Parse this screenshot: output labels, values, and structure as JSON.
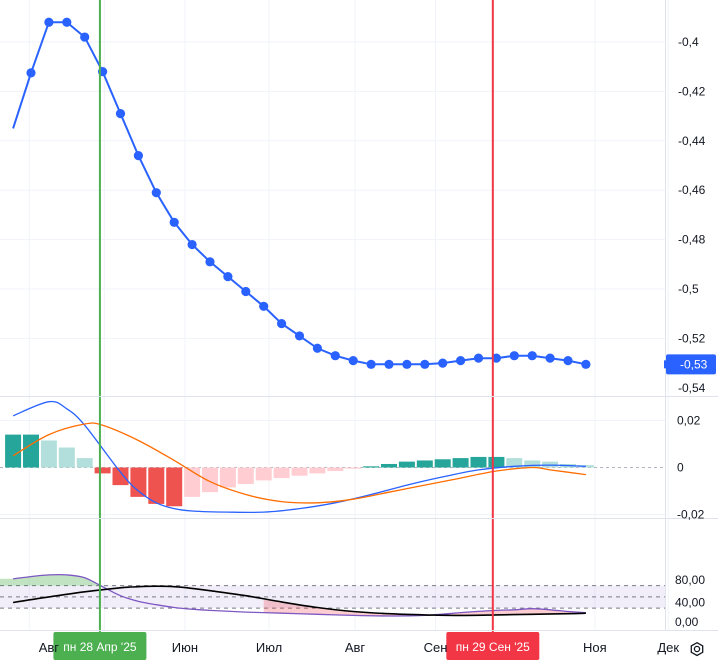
{
  "chart_data": [
    {
      "type": "line",
      "pane": "main",
      "y_ticks": [
        "-0,4",
        "-0,42",
        "-0,44",
        "-0,46",
        "-0,48",
        "-0,5",
        "-0,52",
        "-0,54"
      ],
      "ylim": [
        -0.542,
        -0.385
      ],
      "series": [
        {
          "color": "#2962ff",
          "x": [
            -1,
            0,
            1,
            2,
            3,
            4,
            5,
            6,
            7,
            8,
            9,
            10,
            11,
            12,
            13,
            14,
            15,
            16,
            17,
            18,
            19,
            20,
            21,
            22,
            23,
            24,
            25,
            26,
            27,
            28,
            29,
            30,
            31
          ],
          "values": [
            -0.435,
            -0.4125,
            -0.392,
            -0.392,
            -0.398,
            -0.412,
            -0.429,
            -0.446,
            -0.461,
            -0.473,
            -0.482,
            -0.489,
            -0.495,
            -0.501,
            -0.507,
            -0.514,
            -0.519,
            -0.524,
            -0.527,
            -0.529,
            -0.5305,
            -0.5305,
            -0.5305,
            -0.5305,
            -0.53,
            -0.529,
            -0.528,
            -0.528,
            -0.527,
            -0.527,
            -0.528,
            -0.529,
            -0.5305
          ]
        }
      ],
      "price_label": "-0,53",
      "vlines": [
        {
          "x": 3.85,
          "color": "#4caf50",
          "label": "пн 28 Апр '25"
        },
        {
          "x": 25.8,
          "color": "#f23645",
          "label": "пн 29 Сен '25"
        }
      ]
    },
    {
      "type": "bar",
      "pane": "macd",
      "y_ticks": [
        "0,02",
        "0",
        "-0,02"
      ],
      "ylim": [
        -0.0235,
        0.025
      ],
      "histogram": {
        "x": [
          -1,
          0,
          1,
          2,
          3,
          4,
          5,
          6,
          7,
          8,
          9,
          10,
          11,
          12,
          13,
          14,
          15,
          16,
          17,
          18,
          19,
          20,
          21,
          22,
          23,
          24,
          25,
          26,
          27,
          28,
          29,
          30,
          31
        ],
        "values": [
          0.014,
          0.014,
          0.0115,
          0.0085,
          0.004,
          -0.0025,
          -0.0075,
          -0.0125,
          -0.0155,
          -0.0165,
          -0.0125,
          -0.0105,
          -0.0085,
          -0.007,
          -0.0055,
          -0.0045,
          -0.0035,
          -0.0025,
          -0.0015,
          -0.0005,
          0.0005,
          0.0015,
          0.0025,
          0.003,
          0.0035,
          0.004,
          0.0045,
          0.0045,
          0.004,
          0.003,
          0.0025,
          0.0015,
          0.001
        ]
      },
      "series": [
        {
          "color": "#2962ff",
          "x": [
            -1,
            1,
            2,
            3,
            5,
            6,
            7,
            8,
            9,
            11,
            13,
            15,
            17,
            19,
            21,
            23,
            25,
            27,
            29,
            31
          ],
          "values": [
            0.022,
            0.028,
            0.025,
            0.018,
            -0.002,
            -0.01,
            -0.015,
            -0.0175,
            -0.0185,
            -0.019,
            -0.019,
            -0.0175,
            -0.015,
            -0.0115,
            -0.0075,
            -0.004,
            -0.001,
            0.0005,
            0.001,
            0.0005
          ]
        },
        {
          "color": "#ff6d00",
          "x": [
            -1,
            1,
            3,
            4,
            6,
            8,
            10,
            12,
            14,
            16,
            18,
            20,
            22,
            24,
            26,
            28,
            29,
            31
          ],
          "values": [
            0.005,
            0.014,
            0.0185,
            0.018,
            0.0115,
            0.003,
            -0.006,
            -0.0115,
            -0.0145,
            -0.015,
            -0.0135,
            -0.0105,
            -0.0075,
            -0.0045,
            -0.0015,
            0.0,
            -0.001,
            -0.003
          ]
        }
      ]
    },
    {
      "type": "line",
      "pane": "oscillator",
      "y_ticks": [
        "80,00",
        "40,00",
        "0,00"
      ],
      "ylim": [
        0,
        91
      ],
      "levels": [
        70,
        50,
        30
      ],
      "series": [
        {
          "color": "#7e57c2",
          "x": [
            -1,
            0,
            1,
            2,
            3,
            4,
            5,
            6,
            7,
            8,
            9,
            10,
            12,
            14,
            16,
            18,
            20,
            22,
            24,
            26,
            27,
            28,
            29,
            30,
            31
          ],
          "values": [
            82,
            86,
            89,
            89,
            84,
            68,
            52,
            42,
            36,
            31,
            28,
            26,
            23,
            21,
            19,
            17,
            16,
            17,
            22,
            26,
            27,
            29,
            27,
            24,
            22
          ]
        },
        {
          "color": "#000000",
          "x": [
            -1,
            1,
            3,
            5,
            6,
            7,
            8,
            9,
            10,
            12,
            14,
            16,
            18,
            20,
            22,
            24,
            26,
            28,
            30,
            31
          ],
          "values": [
            40,
            50,
            59,
            66,
            68,
            69,
            68,
            65,
            61,
            52,
            41,
            31,
            24,
            20,
            18,
            17,
            18,
            19,
            20,
            21
          ]
        }
      ]
    },
    {
      "type": "axis",
      "pane": "time",
      "x_ticks": [
        {
          "x": 1.0,
          "label": "Авг"
        },
        {
          "x": 8.6,
          "label": "Июн"
        },
        {
          "x": 13.3,
          "label": "Июл"
        },
        {
          "x": 18.1,
          "label": "Авг"
        },
        {
          "x": 22.6,
          "label": "Сен"
        },
        {
          "x": 31.5,
          "label": "Ноя"
        },
        {
          "x": 35.6,
          "label": "Дек"
        }
      ]
    }
  ],
  "settings_icon": "gear-icon"
}
